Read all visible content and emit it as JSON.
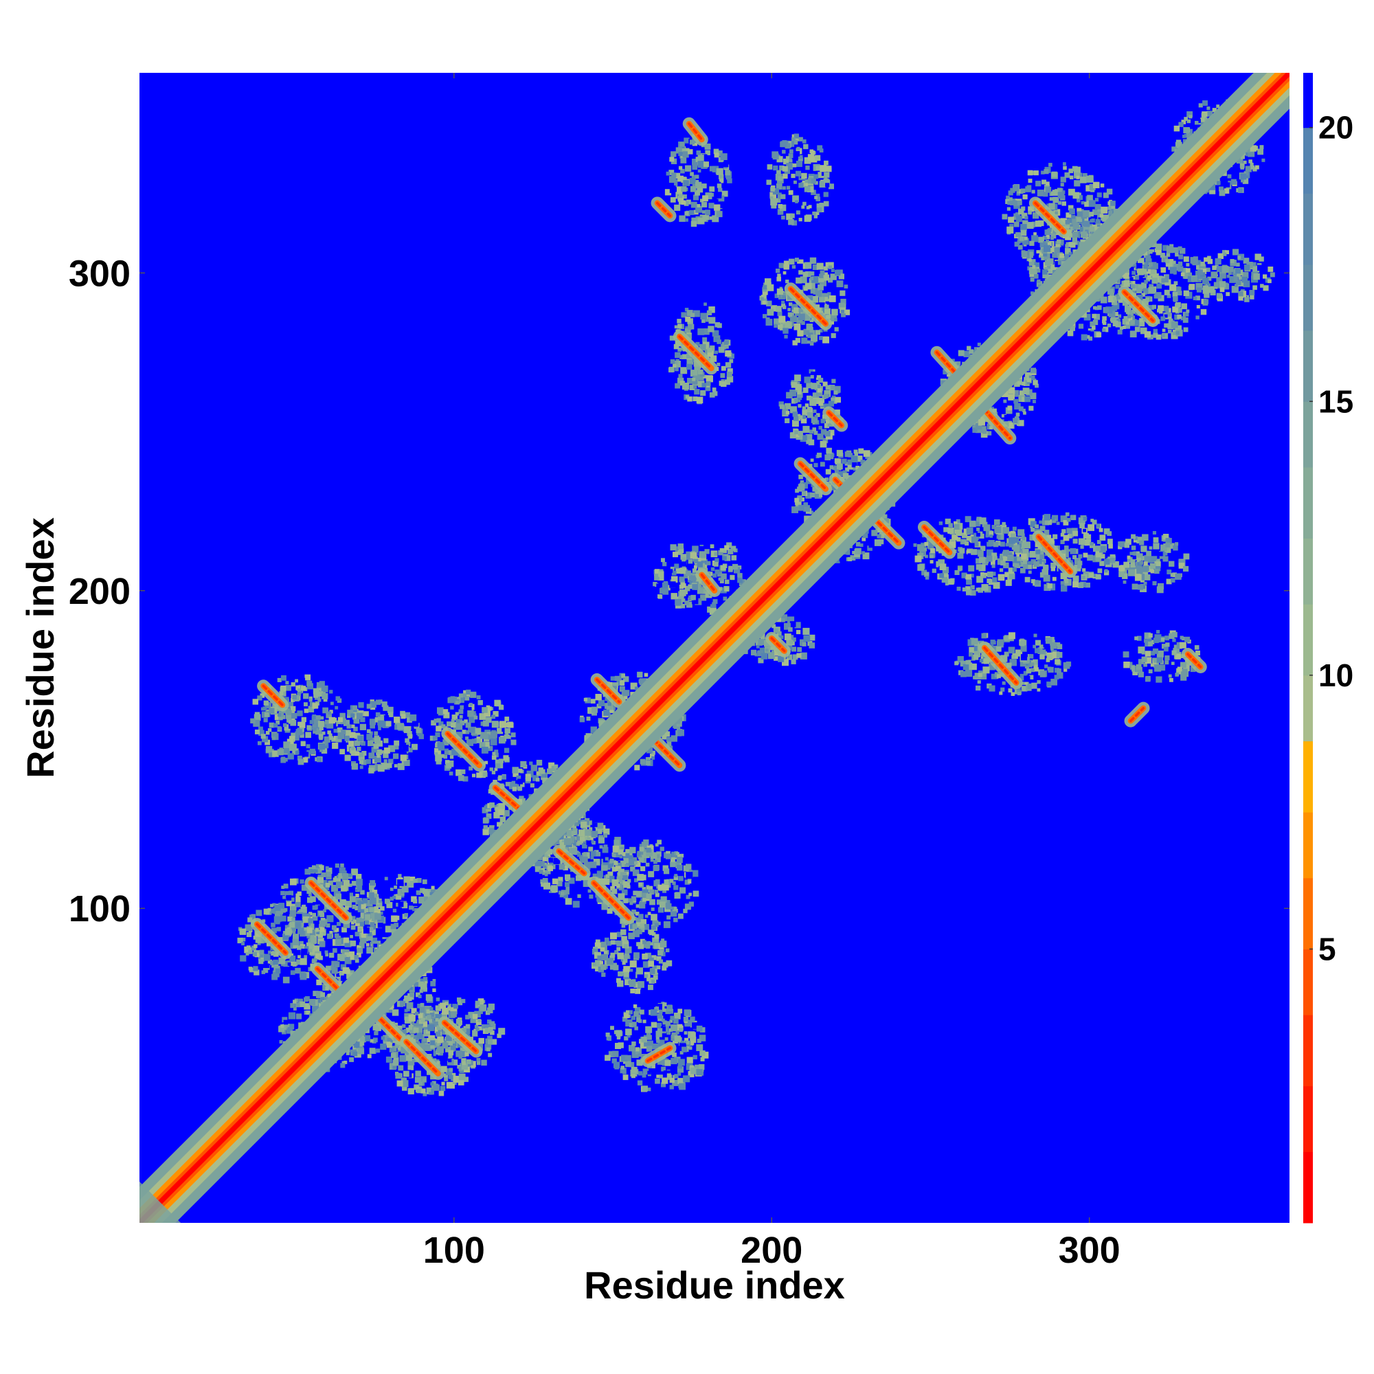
{
  "chart_data": {
    "type": "heatmap",
    "title": "",
    "xlabel": "Residue index",
    "ylabel": "Residue index",
    "xlim": [
      1,
      363
    ],
    "ylim": [
      1,
      363
    ],
    "x_ticks": [
      100,
      200,
      300
    ],
    "y_ticks": [
      100,
      200,
      300
    ],
    "colorbar": {
      "range": [
        0,
        21
      ],
      "ticks": [
        5,
        10,
        15,
        20
      ],
      "palette": [
        {
          "max": 1.3,
          "color": "#ff0000"
        },
        {
          "max": 2.5,
          "color": "#ff1a00"
        },
        {
          "max": 3.8,
          "color": "#ff3300"
        },
        {
          "max": 5.0,
          "color": "#ff5200"
        },
        {
          "max": 6.3,
          "color": "#ff7000"
        },
        {
          "max": 7.5,
          "color": "#ff9200"
        },
        {
          "max": 8.8,
          "color": "#ffb000"
        },
        {
          "max": 10.0,
          "color": "#a9bd8c"
        },
        {
          "max": 11.3,
          "color": "#9cb98f"
        },
        {
          "max": 12.5,
          "color": "#90b294"
        },
        {
          "max": 13.8,
          "color": "#86ab98"
        },
        {
          "max": 15.0,
          "color": "#7ca39c"
        },
        {
          "max": 16.3,
          "color": "#7199a0"
        },
        {
          "max": 17.5,
          "color": "#668fa6"
        },
        {
          "max": 18.8,
          "color": "#5f8aab"
        },
        {
          "max": 20.0,
          "color": "#5584b0"
        },
        {
          "max": 21.0,
          "color": "#0000ff"
        }
      ]
    },
    "background_value": 21,
    "diagonal": {
      "from": 1,
      "to": 363
    },
    "contact_segments": [
      {
        "x1": 55,
        "y1": 108,
        "x2": 66,
        "y2": 97
      },
      {
        "x1": 38,
        "y1": 95,
        "x2": 47,
        "y2": 86
      },
      {
        "x1": 57,
        "y1": 81,
        "x2": 68,
        "y2": 70
      },
      {
        "x1": 72,
        "y1": 70,
        "x2": 83,
        "y2": 59
      },
      {
        "x1": 85,
        "y1": 58,
        "x2": 95,
        "y2": 48
      },
      {
        "x1": 97,
        "y1": 64,
        "x2": 107,
        "y2": 55
      },
      {
        "x1": 98,
        "y1": 155,
        "x2": 108,
        "y2": 145
      },
      {
        "x1": 113,
        "y1": 138,
        "x2": 122,
        "y2": 130
      },
      {
        "x1": 133,
        "y1": 118,
        "x2": 141,
        "y2": 111
      },
      {
        "x1": 144,
        "y1": 108,
        "x2": 155,
        "y2": 97
      },
      {
        "x1": 145,
        "y1": 172,
        "x2": 152,
        "y2": 165
      },
      {
        "x1": 163,
        "y1": 153,
        "x2": 171,
        "y2": 145
      },
      {
        "x1": 40,
        "y1": 170,
        "x2": 46,
        "y2": 164
      },
      {
        "x1": 161,
        "y1": 52,
        "x2": 168,
        "y2": 56
      },
      {
        "x1": 171,
        "y1": 280,
        "x2": 181,
        "y2": 270
      },
      {
        "x1": 206,
        "y1": 295,
        "x2": 217,
        "y2": 284
      },
      {
        "x1": 209,
        "y1": 240,
        "x2": 217,
        "y2": 232
      },
      {
        "x1": 220,
        "y1": 235,
        "x2": 240,
        "y2": 215
      },
      {
        "x1": 248,
        "y1": 220,
        "x2": 256,
        "y2": 212
      },
      {
        "x1": 252,
        "y1": 275,
        "x2": 262,
        "y2": 264
      },
      {
        "x1": 267,
        "y1": 257,
        "x2": 275,
        "y2": 248
      },
      {
        "x1": 284,
        "y1": 217,
        "x2": 294,
        "y2": 206
      },
      {
        "x1": 267,
        "y1": 182,
        "x2": 277,
        "y2": 171
      },
      {
        "x1": 283,
        "y1": 322,
        "x2": 292,
        "y2": 313
      },
      {
        "x1": 311,
        "y1": 294,
        "x2": 320,
        "y2": 285
      },
      {
        "x1": 200,
        "y1": 185,
        "x2": 204,
        "y2": 181
      },
      {
        "x1": 178,
        "y1": 205,
        "x2": 182,
        "y2": 200
      },
      {
        "x1": 174,
        "y1": 347,
        "x2": 178,
        "y2": 342
      },
      {
        "x1": 164,
        "y1": 322,
        "x2": 168,
        "y2": 318
      },
      {
        "x1": 313,
        "y1": 159,
        "x2": 317,
        "y2": 163
      },
      {
        "x1": 331,
        "y1": 180,
        "x2": 335,
        "y2": 176
      },
      {
        "x1": 218,
        "y1": 256,
        "x2": 222,
        "y2": 252
      }
    ],
    "contact_clusters": [
      {
        "cx": 60,
        "cy": 100,
        "rx": 17,
        "ry": 15
      },
      {
        "cx": 45,
        "cy": 90,
        "rx": 14,
        "ry": 12
      },
      {
        "cx": 83,
        "cy": 98,
        "rx": 14,
        "ry": 13
      },
      {
        "cx": 75,
        "cy": 72,
        "rx": 20,
        "ry": 18
      },
      {
        "cx": 92,
        "cy": 55,
        "rx": 14,
        "ry": 14
      },
      {
        "cx": 103,
        "cy": 62,
        "rx": 12,
        "ry": 11
      },
      {
        "cx": 58,
        "cy": 62,
        "rx": 14,
        "ry": 12
      },
      {
        "cx": 50,
        "cy": 160,
        "rx": 15,
        "ry": 14
      },
      {
        "cx": 75,
        "cy": 155,
        "rx": 14,
        "ry": 11
      },
      {
        "cx": 105,
        "cy": 155,
        "rx": 13,
        "ry": 14
      },
      {
        "cx": 125,
        "cy": 130,
        "rx": 17,
        "ry": 17
      },
      {
        "cx": 140,
        "cy": 115,
        "rx": 15,
        "ry": 13
      },
      {
        "cx": 160,
        "cy": 108,
        "rx": 16,
        "ry": 14
      },
      {
        "cx": 155,
        "cy": 160,
        "rx": 16,
        "ry": 15
      },
      {
        "cx": 163,
        "cy": 57,
        "rx": 16,
        "ry": 14
      },
      {
        "cx": 155,
        "cy": 85,
        "rx": 12,
        "ry": 11
      },
      {
        "cx": 177,
        "cy": 275,
        "rx": 10,
        "ry": 16
      },
      {
        "cx": 181,
        "cy": 205,
        "rx": 10,
        "ry": 12
      },
      {
        "cx": 210,
        "cy": 292,
        "rx": 14,
        "ry": 14
      },
      {
        "cx": 212,
        "cy": 258,
        "rx": 10,
        "ry": 12
      },
      {
        "cx": 222,
        "cy": 228,
        "rx": 16,
        "ry": 18
      },
      {
        "cx": 200,
        "cy": 185,
        "rx": 12,
        "ry": 8
      },
      {
        "cx": 268,
        "cy": 265,
        "rx": 15,
        "ry": 15
      },
      {
        "cx": 262,
        "cy": 212,
        "rx": 18,
        "ry": 12
      },
      {
        "cx": 290,
        "cy": 213,
        "rx": 18,
        "ry": 12
      },
      {
        "cx": 318,
        "cy": 210,
        "rx": 12,
        "ry": 9
      },
      {
        "cx": 275,
        "cy": 178,
        "rx": 18,
        "ry": 10
      },
      {
        "cx": 290,
        "cy": 318,
        "rx": 18,
        "ry": 17
      },
      {
        "cx": 320,
        "cy": 295,
        "rx": 18,
        "ry": 15
      },
      {
        "cx": 300,
        "cy": 300,
        "rx": 20,
        "ry": 20
      },
      {
        "cx": 340,
        "cy": 340,
        "rx": 15,
        "ry": 15
      },
      {
        "cx": 176,
        "cy": 330,
        "rx": 10,
        "ry": 14
      },
      {
        "cx": 208,
        "cy": 330,
        "rx": 10,
        "ry": 14
      },
      {
        "cx": 345,
        "cy": 300,
        "rx": 12,
        "ry": 8
      },
      {
        "cx": 322,
        "cy": 180,
        "rx": 12,
        "ry": 8
      },
      {
        "cx": 170,
        "cy": 205,
        "rx": 8,
        "ry": 10
      }
    ]
  }
}
